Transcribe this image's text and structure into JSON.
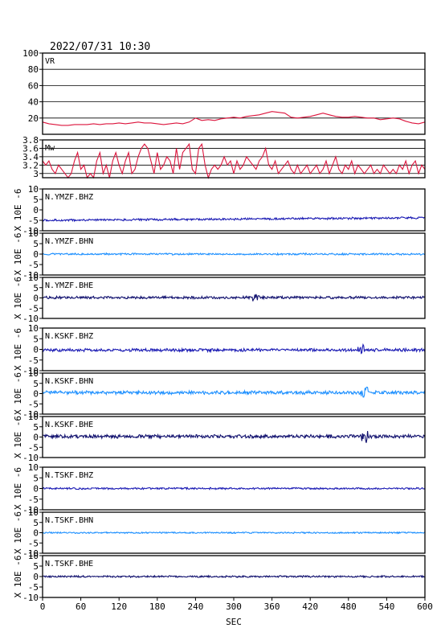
{
  "header": {
    "timestamp": "2022/07/31 10:30"
  },
  "x_axis": {
    "label": "SEC",
    "ticks": [
      0,
      60,
      120,
      180,
      240,
      300,
      360,
      420,
      480,
      540,
      600
    ],
    "range": [
      0,
      600
    ]
  },
  "waveform_ylabel": "X 10E -6",
  "chart_data": [
    {
      "type": "line",
      "panel": "vr",
      "title": "VR",
      "ylim": [
        0,
        100
      ],
      "yticks": [
        20,
        40,
        60,
        80,
        100
      ],
      "grid": true,
      "color": "#dc143c",
      "x": [
        0,
        10,
        20,
        30,
        40,
        50,
        60,
        70,
        80,
        90,
        100,
        110,
        120,
        130,
        140,
        150,
        160,
        170,
        180,
        190,
        200,
        210,
        220,
        230,
        240,
        250,
        260,
        270,
        280,
        290,
        300,
        310,
        320,
        330,
        340,
        350,
        360,
        370,
        380,
        390,
        400,
        410,
        420,
        430,
        440,
        450,
        460,
        470,
        480,
        490,
        500,
        510,
        520,
        530,
        540,
        550,
        560,
        570,
        580,
        590,
        600
      ],
      "values": [
        15,
        13,
        12,
        11,
        11,
        12,
        12,
        12,
        13,
        12,
        13,
        13,
        14,
        13,
        14,
        15,
        14,
        14,
        13,
        12,
        13,
        14,
        13,
        15,
        20,
        17,
        18,
        17,
        19,
        20,
        21,
        20,
        22,
        23,
        24,
        26,
        28,
        27,
        26,
        21,
        20,
        21,
        22,
        24,
        26,
        24,
        22,
        21,
        21,
        22,
        21,
        20,
        20,
        18,
        19,
        20,
        19,
        16,
        14,
        13,
        15
      ]
    },
    {
      "type": "line",
      "panel": "mw",
      "title": "Mw",
      "ylim": [
        2.9,
        3.8
      ],
      "yticks": [
        3.0,
        3.2,
        3.4,
        3.6,
        3.8
      ],
      "grid": true,
      "color": "#dc143c",
      "x": [
        0,
        5,
        10,
        15,
        20,
        25,
        30,
        35,
        40,
        45,
        50,
        55,
        60,
        65,
        70,
        75,
        80,
        85,
        90,
        95,
        100,
        105,
        110,
        115,
        120,
        125,
        130,
        135,
        140,
        145,
        150,
        155,
        160,
        165,
        170,
        175,
        180,
        185,
        190,
        195,
        200,
        205,
        210,
        215,
        220,
        225,
        230,
        235,
        240,
        245,
        250,
        255,
        260,
        265,
        270,
        275,
        280,
        285,
        290,
        295,
        300,
        305,
        310,
        315,
        320,
        325,
        330,
        335,
        340,
        345,
        350,
        355,
        360,
        365,
        370,
        375,
        380,
        385,
        390,
        395,
        400,
        405,
        410,
        415,
        420,
        425,
        430,
        435,
        440,
        445,
        450,
        455,
        460,
        465,
        470,
        475,
        480,
        485,
        490,
        495,
        500,
        505,
        510,
        515,
        520,
        525,
        530,
        535,
        540,
        545,
        550,
        555,
        560,
        565,
        570,
        575,
        580,
        585,
        590,
        595,
        600
      ],
      "values": [
        3.3,
        3.2,
        3.3,
        3.1,
        3.0,
        3.2,
        3.1,
        3.0,
        2.9,
        3.0,
        3.3,
        3.5,
        3.1,
        3.2,
        2.9,
        3.0,
        2.9,
        3.3,
        3.5,
        3.0,
        3.2,
        2.9,
        3.3,
        3.5,
        3.2,
        3.0,
        3.3,
        3.5,
        3.0,
        3.1,
        3.4,
        3.6,
        3.7,
        3.6,
        3.3,
        3.0,
        3.5,
        3.1,
        3.2,
        3.4,
        3.3,
        3.0,
        3.6,
        3.1,
        3.5,
        3.6,
        3.7,
        3.1,
        3.0,
        3.6,
        3.7,
        3.2,
        2.9,
        3.1,
        3.2,
        3.1,
        3.2,
        3.4,
        3.2,
        3.3,
        3.0,
        3.3,
        3.1,
        3.2,
        3.4,
        3.3,
        3.2,
        3.1,
        3.3,
        3.4,
        3.6,
        3.2,
        3.1,
        3.3,
        3.0,
        3.1,
        3.2,
        3.3,
        3.1,
        3.0,
        3.2,
        3.0,
        3.1,
        3.2,
        3.0,
        3.1,
        3.2,
        3.0,
        3.1,
        3.3,
        3.0,
        3.2,
        3.4,
        3.1,
        3.0,
        3.2,
        3.1,
        3.3,
        3.0,
        3.2,
        3.1,
        3.0,
        3.1,
        3.2,
        3.0,
        3.1,
        3.0,
        3.2,
        3.1,
        3.0,
        3.1,
        3.0,
        3.2,
        3.1,
        3.3,
        3.0,
        3.2,
        3.3,
        3.0,
        3.2,
        3.1
      ]
    },
    {
      "type": "line",
      "panel": "waveform",
      "title": "N.YMZF.BHZ",
      "ylim": [
        -10,
        10
      ],
      "yticks": [
        -10,
        -5,
        0,
        5,
        10
      ],
      "color": "#1c1cb4",
      "offset": -5.0,
      "slope": 1.2,
      "amplitude": 0.35,
      "burst_at": null
    },
    {
      "type": "line",
      "panel": "waveform",
      "title": "N.YMZF.BHN",
      "ylim": [
        -10,
        10
      ],
      "yticks": [
        -10,
        -5,
        0,
        5,
        10
      ],
      "color": "#1e90ff",
      "offset": 0.0,
      "slope": 0,
      "amplitude": 0.3,
      "burst_at": null
    },
    {
      "type": "line",
      "panel": "waveform",
      "title": "N.YMZF.BHE",
      "ylim": [
        -10,
        10
      ],
      "yticks": [
        -10,
        -5,
        0,
        5,
        10
      ],
      "color": "#10106e",
      "offset": 0.2,
      "slope": 0,
      "amplitude": 0.45,
      "burst_at": 335
    },
    {
      "type": "line",
      "panel": "waveform",
      "title": "N.KSKF.BHZ",
      "ylim": [
        -10,
        10
      ],
      "yticks": [
        -10,
        -5,
        0,
        5,
        10
      ],
      "color": "#1c1cb4",
      "offset": -0.3,
      "slope": 0,
      "amplitude": 0.5,
      "burst_at": 500
    },
    {
      "type": "line",
      "panel": "waveform",
      "title": "N.KSKF.BHN",
      "ylim": [
        -10,
        10
      ],
      "yticks": [
        -10,
        -5,
        0,
        5,
        10
      ],
      "color": "#1e90ff",
      "offset": 0.5,
      "slope": 0,
      "amplitude": 0.6,
      "burst_at": 505
    },
    {
      "type": "line",
      "panel": "waveform",
      "title": "N.KSKF.BHE",
      "ylim": [
        -10,
        10
      ],
      "yticks": [
        -10,
        -5,
        0,
        5,
        10
      ],
      "color": "#10106e",
      "offset": 0.3,
      "slope": 0,
      "amplitude": 0.6,
      "burst_at": 505
    },
    {
      "type": "line",
      "panel": "waveform",
      "title": "N.TSKF.BHZ",
      "ylim": [
        -10,
        10
      ],
      "yticks": [
        -10,
        -5,
        0,
        5,
        10
      ],
      "color": "#1c1cb4",
      "offset": 0.0,
      "slope": 0,
      "amplitude": 0.3,
      "burst_at": null
    },
    {
      "type": "line",
      "panel": "waveform",
      "title": "N.TSKF.BHN",
      "ylim": [
        -10,
        10
      ],
      "yticks": [
        -10,
        -5,
        0,
        5,
        10
      ],
      "color": "#1e90ff",
      "offset": 0.0,
      "slope": 0,
      "amplitude": 0.25,
      "burst_at": null
    },
    {
      "type": "line",
      "panel": "waveform",
      "title": "N.TSKF.BHE",
      "ylim": [
        -10,
        10
      ],
      "yticks": [
        -10,
        -5,
        0,
        5,
        10
      ],
      "color": "#10106e",
      "offset": 0.0,
      "slope": 0,
      "amplitude": 0.3,
      "burst_at": null
    }
  ]
}
